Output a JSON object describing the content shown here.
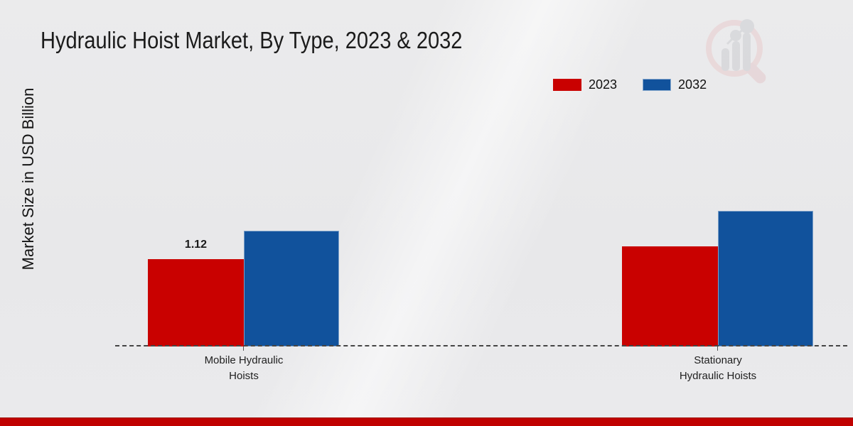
{
  "title": "Hydraulic Hoist Market, By Type, 2023 & 2032",
  "watermark_icon": "magnifier-bar-chart-logo-icon",
  "footer": {
    "bar_color": "#c00100"
  },
  "chart_data": {
    "type": "bar",
    "title": "Hydraulic Hoist Market, By Type, 2023 & 2032",
    "categories": [
      "Mobile Hydraulic Hoists",
      "Stationary Hydraulic Hoists"
    ],
    "series": [
      {
        "name": "2023",
        "color": "#c90100",
        "values": [
          1.12,
          1.28
        ]
      },
      {
        "name": "2032",
        "color": "#11529c",
        "values": [
          1.48,
          1.74
        ]
      }
    ],
    "xlabel": "",
    "ylabel": "Market Size in USD Billion",
    "ylim": [
      0,
      2.2
    ],
    "grid": false,
    "legend_position": "top-right",
    "baseline_style": "dashed",
    "shown_data_labels": [
      {
        "series": "2023",
        "category": "Mobile Hydraulic Hoists",
        "value": 1.12
      }
    ]
  }
}
